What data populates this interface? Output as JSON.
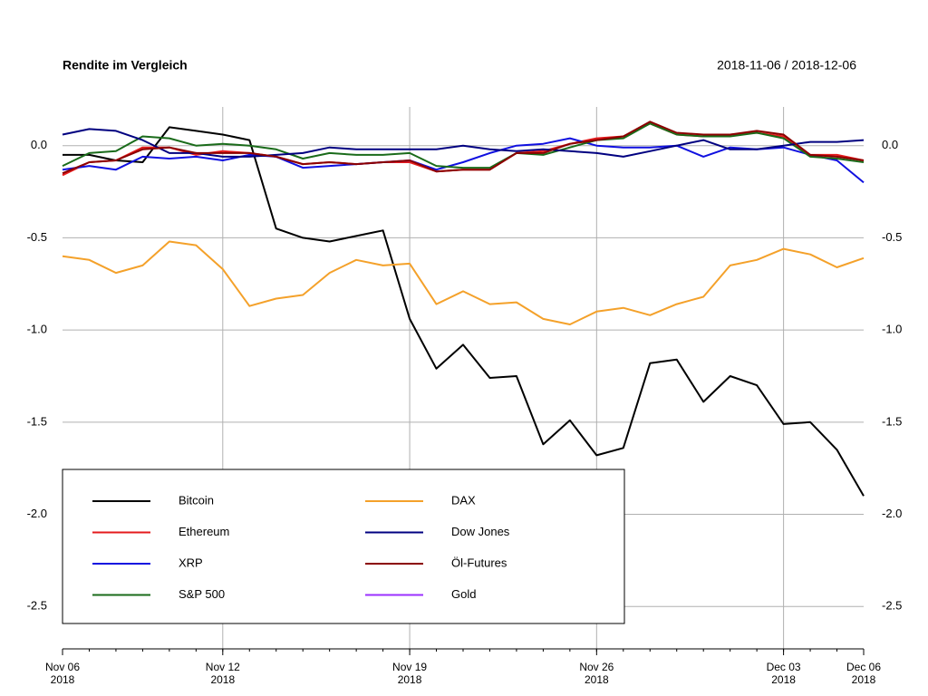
{
  "chart_data": {
    "type": "line",
    "title": "Rendite im Vergleich",
    "subtitle": "2018-11-06 / 2018-12-06",
    "x": [
      "2018-11-06",
      "2018-11-07",
      "2018-11-08",
      "2018-11-09",
      "2018-11-10",
      "2018-11-11",
      "2018-11-12",
      "2018-11-13",
      "2018-11-14",
      "2018-11-15",
      "2018-11-16",
      "2018-11-17",
      "2018-11-18",
      "2018-11-19",
      "2018-11-20",
      "2018-11-21",
      "2018-11-22",
      "2018-11-23",
      "2018-11-24",
      "2018-11-25",
      "2018-11-26",
      "2018-11-27",
      "2018-11-28",
      "2018-11-29",
      "2018-11-30",
      "2018-12-01",
      "2018-12-02",
      "2018-12-03",
      "2018-12-04",
      "2018-12-05",
      "2018-12-06"
    ],
    "xlim": [
      "2018-11-06",
      "2018-12-06"
    ],
    "xticks": [
      {
        "value": "2018-11-06",
        "label": "Nov 06\n2018"
      },
      {
        "value": "2018-11-12",
        "label": "Nov 12\n2018"
      },
      {
        "value": "2018-11-19",
        "label": "Nov 19\n2018"
      },
      {
        "value": "2018-11-26",
        "label": "Nov 26\n2018"
      },
      {
        "value": "2018-12-03",
        "label": "Dec 03\n2018"
      },
      {
        "value": "2018-12-06",
        "label": "Dec 06\n2018"
      }
    ],
    "ylim": [
      -2.73,
      0.21
    ],
    "yticks": [
      {
        "value": 0,
        "label": "0.0"
      },
      -0.5,
      {
        "value": -1,
        "label": "-1.0"
      },
      -1.5,
      {
        "value": -2,
        "label": "-2.0"
      },
      -2.5
    ],
    "grid": true,
    "legend": "bottom-left",
    "series": [
      {
        "name": "Bitcoin",
        "color": "#000000",
        "values": [
          -0.05,
          -0.05,
          -0.08,
          -0.09,
          0.1,
          0.08,
          0.06,
          0.03,
          -0.45,
          -0.5,
          -0.52,
          -0.49,
          -0.46,
          -0.94,
          -1.21,
          -1.08,
          -1.26,
          -1.25,
          -1.62,
          -1.49,
          -1.68,
          -1.64,
          -1.18,
          -1.16,
          -1.39,
          -1.25,
          -1.3,
          -1.51,
          -1.5,
          -1.65,
          -1.9
        ]
      },
      {
        "name": "Ethereum",
        "color": "#e41a1c",
        "values": [
          -0.16,
          -0.09,
          -0.08,
          -0.01,
          -0.01,
          -0.05,
          -0.03,
          -0.04,
          -0.06,
          -0.1,
          -0.09,
          -0.1,
          -0.09,
          -0.09,
          -0.14,
          -0.13,
          -0.13,
          -0.04,
          -0.03,
          0.01,
          0.04,
          0.05,
          0.12,
          0.06,
          0.05,
          0.06,
          0.07,
          0.05,
          -0.05,
          -0.05,
          -0.08
        ]
      },
      {
        "name": "XRP",
        "color": "#1010e0",
        "values": [
          -0.13,
          -0.11,
          -0.13,
          -0.06,
          -0.07,
          -0.06,
          -0.08,
          -0.05,
          -0.06,
          -0.12,
          -0.11,
          -0.1,
          -0.09,
          -0.08,
          -0.13,
          -0.09,
          -0.04,
          0.0,
          0.01,
          0.04,
          0.0,
          -0.01,
          -0.01,
          0.0,
          -0.06,
          -0.01,
          -0.02,
          -0.01,
          -0.05,
          -0.08,
          -0.2
        ]
      },
      {
        "name": "S&P 500",
        "color": "#1a6b1a",
        "values": [
          -0.11,
          -0.04,
          -0.03,
          0.05,
          0.04,
          0.0,
          0.01,
          0.0,
          -0.02,
          -0.07,
          -0.04,
          -0.05,
          -0.05,
          -0.04,
          -0.11,
          -0.12,
          -0.12,
          -0.04,
          -0.05,
          -0.01,
          0.03,
          0.04,
          0.12,
          0.06,
          0.05,
          0.05,
          0.07,
          0.04,
          -0.06,
          -0.07,
          -0.09
        ]
      },
      {
        "name": "DAX",
        "color": "#f4a12a",
        "values": [
          -0.6,
          -0.62,
          -0.69,
          -0.65,
          -0.52,
          -0.54,
          -0.67,
          -0.87,
          -0.83,
          -0.81,
          -0.69,
          -0.62,
          -0.65,
          -0.64,
          -0.86,
          -0.79,
          -0.86,
          -0.85,
          -0.94,
          -0.97,
          -0.9,
          -0.88,
          -0.92,
          -0.86,
          -0.82,
          -0.65,
          -0.62,
          -0.56,
          -0.59,
          -0.66,
          -0.61
        ]
      },
      {
        "name": "Dow Jones",
        "color": "#000080",
        "values": [
          0.06,
          0.09,
          0.08,
          0.03,
          -0.04,
          -0.04,
          -0.06,
          -0.06,
          -0.05,
          -0.04,
          -0.01,
          -0.02,
          -0.02,
          -0.02,
          -0.02,
          0.0,
          -0.02,
          -0.03,
          -0.02,
          -0.03,
          -0.04,
          -0.06,
          -0.03,
          0.0,
          0.03,
          -0.02,
          -0.02,
          0.0,
          0.02,
          0.02,
          0.03
        ]
      },
      {
        "name": "Öl-Futures",
        "color": "#8b0000",
        "values": [
          -0.15,
          -0.09,
          -0.08,
          -0.02,
          -0.01,
          -0.04,
          -0.04,
          -0.04,
          -0.06,
          -0.1,
          -0.09,
          -0.1,
          -0.09,
          -0.08,
          -0.14,
          -0.13,
          -0.13,
          -0.04,
          -0.04,
          0.01,
          0.03,
          0.05,
          0.13,
          0.07,
          0.06,
          0.06,
          0.08,
          0.06,
          -0.05,
          -0.06,
          -0.08
        ]
      },
      {
        "name": "Gold",
        "color": "#9b30ff",
        "values": [
          null,
          null,
          null,
          null,
          null,
          null,
          null,
          null,
          null,
          null,
          null,
          null,
          null,
          null,
          null,
          null,
          null,
          null,
          null,
          null,
          null,
          null,
          null,
          null,
          null,
          null,
          null,
          null,
          null,
          null,
          null
        ]
      }
    ]
  }
}
